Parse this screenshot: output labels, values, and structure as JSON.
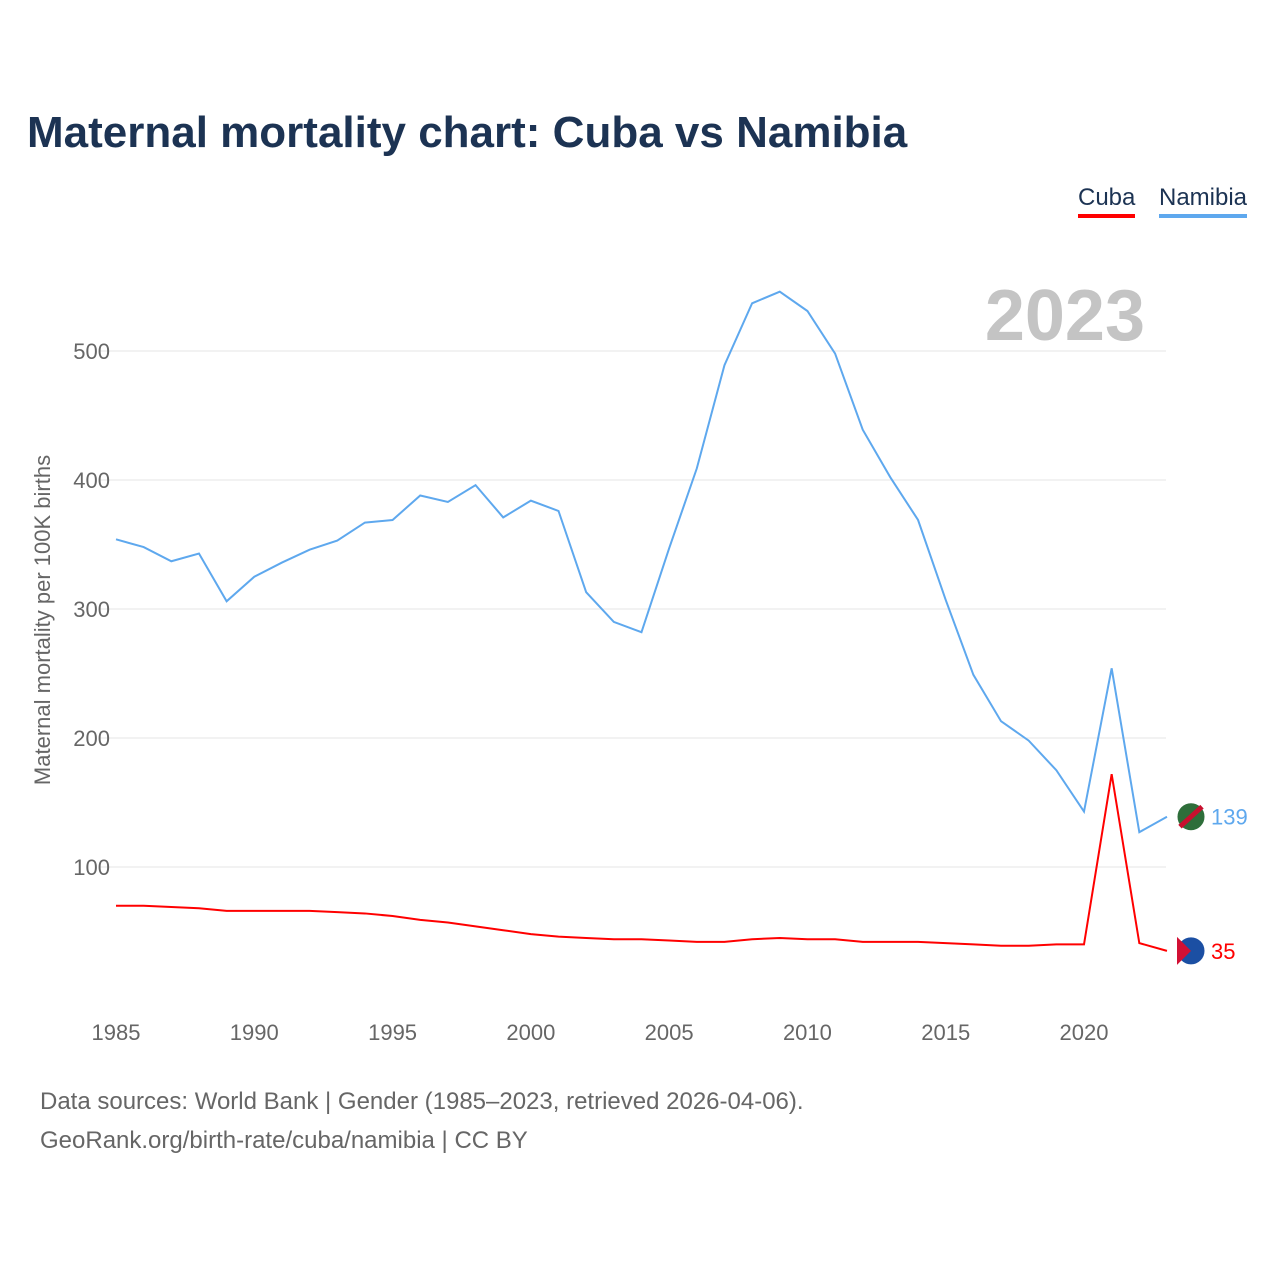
{
  "title": "Maternal mortality chart: Cuba vs Namibia",
  "legend": {
    "cuba": "Cuba",
    "namibia": "Namibia"
  },
  "year_label": "2023",
  "footer": {
    "line1": "Data sources: World Bank | Gender (1985–2023, retrieved 2026-04-06).",
    "line2": "GeoRank.org/birth-rate/cuba/namibia | CC BY"
  },
  "chart_data": {
    "type": "line",
    "title": "Maternal mortality chart: Cuba vs Namibia",
    "xlabel": "",
    "ylabel": "Maternal mortality per 100K births",
    "xlim": [
      1985,
      2023
    ],
    "ylim": [
      0,
      560
    ],
    "xticks": [
      1985,
      1990,
      1995,
      2000,
      2005,
      2010,
      2015,
      2020
    ],
    "yticks": [
      100,
      200,
      300,
      400,
      500
    ],
    "x": [
      1985,
      1986,
      1987,
      1988,
      1989,
      1990,
      1991,
      1992,
      1993,
      1994,
      1995,
      1996,
      1997,
      1998,
      1999,
      2000,
      2001,
      2002,
      2003,
      2004,
      2005,
      2006,
      2007,
      2008,
      2009,
      2010,
      2011,
      2012,
      2013,
      2014,
      2015,
      2016,
      2017,
      2018,
      2019,
      2020,
      2021,
      2022,
      2023
    ],
    "series": [
      {
        "name": "Namibia",
        "color": "#5ea8ee",
        "end_label": "139",
        "values": [
          354,
          348,
          337,
          343,
          306,
          325,
          336,
          346,
          353,
          367,
          369,
          388,
          383,
          396,
          371,
          384,
          376,
          313,
          290,
          282,
          347,
          409,
          489,
          537,
          546,
          531,
          498,
          439,
          402,
          369,
          307,
          249,
          213,
          198,
          175,
          143,
          254,
          127,
          139
        ]
      },
      {
        "name": "Cuba",
        "color": "#ff0000",
        "end_label": "35",
        "values": [
          70,
          70,
          69,
          68,
          66,
          66,
          66,
          66,
          65,
          64,
          62,
          59,
          57,
          54,
          51,
          48,
          46,
          45,
          44,
          44,
          43,
          42,
          42,
          44,
          45,
          44,
          44,
          42,
          42,
          42,
          41,
          40,
          39,
          39,
          40,
          40,
          172,
          41,
          35
        ]
      }
    ],
    "legend_position": "top-right",
    "grid": true
  }
}
